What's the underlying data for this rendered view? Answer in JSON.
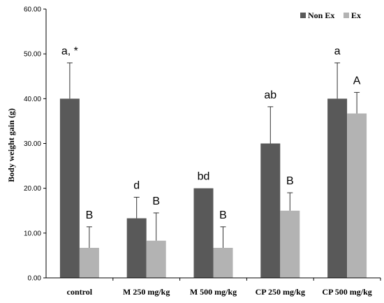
{
  "chart_data": {
    "type": "bar",
    "title": "",
    "xlabel": "",
    "ylabel": "Body weight gain (g)",
    "ylim": [
      0,
      60
    ],
    "yticks": [
      "0.00",
      "10.00",
      "20.00",
      "30.00",
      "40.00",
      "50.00",
      "60.00"
    ],
    "ytick_values": [
      0,
      10,
      20,
      30,
      40,
      50,
      60
    ],
    "grid": false,
    "legend_position": "top-right",
    "categories": [
      "control",
      "M 250 mg/kg",
      "M 500 mg/kg",
      "CP 250 mg/kg",
      "CP 500 mg/kg"
    ],
    "series": [
      {
        "name": "Non Ex",
        "color": "#595959",
        "values": [
          40.0,
          13.3,
          20.0,
          30.0,
          40.0
        ],
        "errors": [
          8.0,
          4.7,
          0.0,
          8.2,
          8.0
        ],
        "annotations": [
          "a, *",
          "d",
          "bd",
          "ab",
          "a"
        ]
      },
      {
        "name": "Ex",
        "color": "#b3b3b3",
        "values": [
          6.7,
          8.3,
          6.7,
          15.0,
          36.7
        ],
        "errors": [
          4.7,
          6.2,
          4.7,
          4.0,
          4.7
        ],
        "annotations": [
          "B",
          "B",
          "B",
          "B",
          "A"
        ]
      }
    ]
  }
}
